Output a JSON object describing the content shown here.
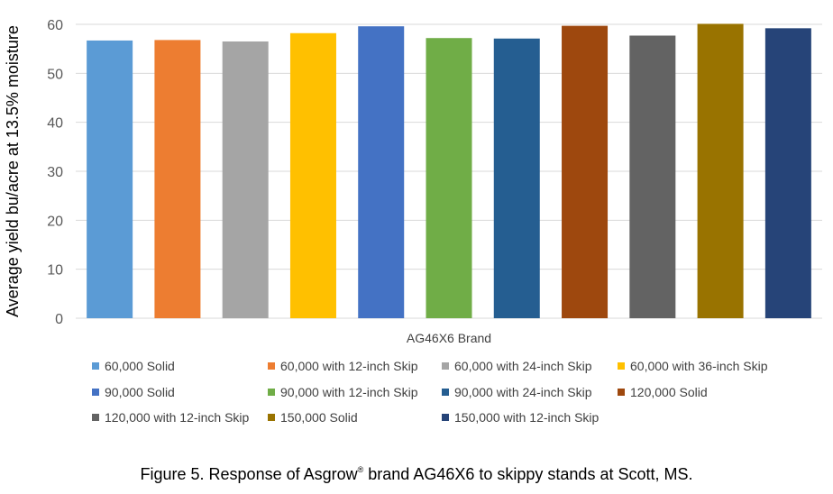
{
  "chart_data": {
    "type": "bar",
    "xlabel": "AG46X6 Brand",
    "ylabel": "Average yield bu/acre at 13.5% moisture",
    "ylim": [
      0,
      60
    ],
    "yticks": [
      0,
      10,
      20,
      30,
      40,
      50,
      60
    ],
    "grid": true,
    "legend_position": "bottom",
    "series": [
      {
        "name": "60,000 Solid",
        "value": 56.7,
        "color": "#5B9BD5"
      },
      {
        "name": "60,000 with 12-inch Skip",
        "value": 56.8,
        "color": "#ED7D31"
      },
      {
        "name": "60,000 with 24-inch Skip",
        "value": 56.5,
        "color": "#A5A5A5"
      },
      {
        "name": "60,000 with 36-inch Skip",
        "value": 58.2,
        "color": "#FFC000"
      },
      {
        "name": "90,000 Solid",
        "value": 59.6,
        "color": "#4472C4"
      },
      {
        "name": "90,000 with 12-inch Skip",
        "value": 57.2,
        "color": "#70AD47"
      },
      {
        "name": "90,000 with 24-inch Skip",
        "value": 57.1,
        "color": "#255E91"
      },
      {
        "name": "120,000 Solid",
        "value": 59.7,
        "color": "#9E480E"
      },
      {
        "name": "120,000 with 12-inch Skip",
        "value": 57.7,
        "color": "#636363"
      },
      {
        "name": "150,000 Solid",
        "value": 60.1,
        "color": "#997300"
      },
      {
        "name": "150,000 with 12-inch Skip",
        "value": 59.2,
        "color": "#264478"
      }
    ]
  },
  "caption": {
    "prefix": "Figure 5. Response of  Asgrow",
    "mark": "®",
    "suffix": " brand AG46X6 to skippy stands at Scott, MS."
  }
}
